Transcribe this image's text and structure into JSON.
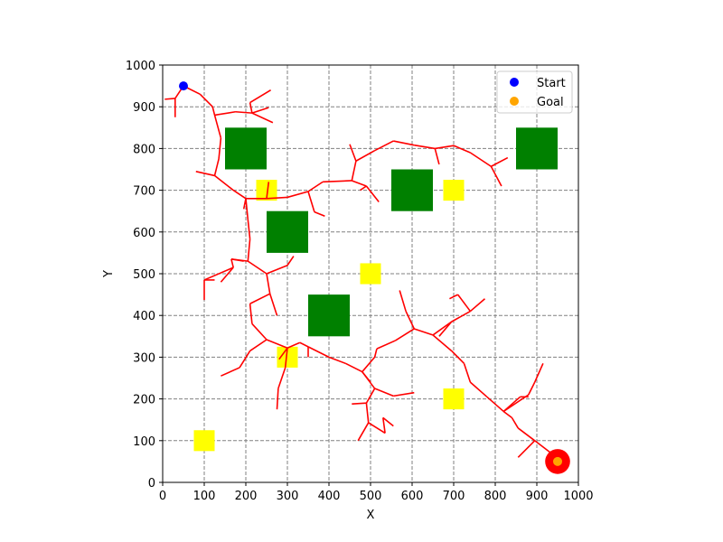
{
  "chart_data": {
    "type": "scatter",
    "title": "",
    "xlabel": "X",
    "ylabel": "Y",
    "xlim": [
      0,
      1000
    ],
    "ylim": [
      0,
      1000
    ],
    "x_ticks": [
      0,
      100,
      200,
      300,
      400,
      500,
      600,
      700,
      800,
      900,
      1000
    ],
    "y_ticks": [
      0,
      100,
      200,
      300,
      400,
      500,
      600,
      700,
      800,
      900,
      1000
    ],
    "grid": true,
    "legend_position": "top-right",
    "obstacles": [
      {
        "x": [
          150,
          250
        ],
        "y": [
          750,
          850
        ]
      },
      {
        "x": [
          250,
          350
        ],
        "y": [
          550,
          650
        ]
      },
      {
        "x": [
          350,
          450
        ],
        "y": [
          350,
          450
        ]
      },
      {
        "x": [
          550,
          650
        ],
        "y": [
          650,
          750
        ]
      },
      {
        "x": [
          850,
          950
        ],
        "y": [
          750,
          850
        ]
      }
    ],
    "hazards": [
      {
        "x": [
          225,
          275
        ],
        "y": [
          675,
          725
        ]
      },
      {
        "x": [
          475,
          525
        ],
        "y": [
          475,
          525
        ]
      },
      {
        "x": [
          675,
          725
        ],
        "y": [
          675,
          725
        ]
      },
      {
        "x": [
          275,
          325
        ],
        "y": [
          275,
          325
        ]
      },
      {
        "x": [
          675,
          725
        ],
        "y": [
          175,
          225
        ]
      },
      {
        "x": [
          75,
          125
        ],
        "y": [
          75,
          125
        ]
      }
    ],
    "tree_edges": [
      [
        [
          50,
          950
        ],
        [
          30,
          920
        ]
      ],
      [
        [
          30,
          920
        ],
        [
          5,
          918
        ]
      ],
      [
        [
          30,
          920
        ],
        [
          30,
          875
        ]
      ],
      [
        [
          50,
          950
        ],
        [
          90,
          930
        ]
      ],
      [
        [
          90,
          930
        ],
        [
          120,
          900
        ]
      ],
      [
        [
          120,
          900
        ],
        [
          125,
          880
        ]
      ],
      [
        [
          125,
          880
        ],
        [
          175,
          888
        ]
      ],
      [
        [
          175,
          888
        ],
        [
          215,
          885
        ]
      ],
      [
        [
          215,
          885
        ],
        [
          255,
          898
        ]
      ],
      [
        [
          215,
          885
        ],
        [
          210,
          910
        ]
      ],
      [
        [
          210,
          910
        ],
        [
          260,
          940
        ]
      ],
      [
        [
          215,
          885
        ],
        [
          265,
          862
        ]
      ],
      [
        [
          125,
          880
        ],
        [
          140,
          825
        ]
      ],
      [
        [
          140,
          825
        ],
        [
          135,
          775
        ]
      ],
      [
        [
          135,
          775
        ],
        [
          125,
          735
        ]
      ],
      [
        [
          125,
          735
        ],
        [
          80,
          745
        ]
      ],
      [
        [
          125,
          735
        ],
        [
          170,
          700
        ]
      ],
      [
        [
          170,
          700
        ],
        [
          200,
          680
        ]
      ],
      [
        [
          200,
          680
        ],
        [
          250,
          680
        ]
      ],
      [
        [
          250,
          680
        ],
        [
          300,
          683
        ]
      ],
      [
        [
          300,
          683
        ],
        [
          350,
          697
        ]
      ],
      [
        [
          350,
          697
        ],
        [
          365,
          648
        ]
      ],
      [
        [
          365,
          648
        ],
        [
          390,
          638
        ]
      ],
      [
        [
          350,
          697
        ],
        [
          385,
          720
        ]
      ],
      [
        [
          385,
          720
        ],
        [
          455,
          723
        ]
      ],
      [
        [
          455,
          723
        ],
        [
          490,
          710
        ]
      ],
      [
        [
          490,
          710
        ],
        [
          520,
          672
        ]
      ],
      [
        [
          490,
          710
        ],
        [
          475,
          700
        ]
      ],
      [
        [
          455,
          723
        ],
        [
          465,
          770
        ]
      ],
      [
        [
          465,
          770
        ],
        [
          450,
          810
        ]
      ],
      [
        [
          465,
          770
        ],
        [
          510,
          795
        ]
      ],
      [
        [
          510,
          795
        ],
        [
          555,
          818
        ]
      ],
      [
        [
          555,
          818
        ],
        [
          605,
          808
        ]
      ],
      [
        [
          605,
          808
        ],
        [
          655,
          800
        ]
      ],
      [
        [
          655,
          800
        ],
        [
          700,
          807
        ]
      ],
      [
        [
          700,
          807
        ],
        [
          740,
          790
        ]
      ],
      [
        [
          740,
          790
        ],
        [
          790,
          757
        ]
      ],
      [
        [
          790,
          757
        ],
        [
          815,
          710
        ]
      ],
      [
        [
          790,
          757
        ],
        [
          830,
          778
        ]
      ],
      [
        [
          655,
          800
        ],
        [
          665,
          762
        ]
      ],
      [
        [
          250,
          680
        ],
        [
          255,
          720
        ]
      ],
      [
        [
          200,
          680
        ],
        [
          195,
          655
        ]
      ],
      [
        [
          200,
          680
        ],
        [
          205,
          630
        ]
      ],
      [
        [
          205,
          630
        ],
        [
          210,
          583
        ]
      ],
      [
        [
          210,
          583
        ],
        [
          205,
          530
        ]
      ],
      [
        [
          205,
          530
        ],
        [
          165,
          535
        ]
      ],
      [
        [
          165,
          535
        ],
        [
          170,
          515
        ]
      ],
      [
        [
          170,
          515
        ],
        [
          140,
          480
        ]
      ],
      [
        [
          165,
          535
        ],
        [
          195,
          530
        ]
      ],
      [
        [
          205,
          530
        ],
        [
          250,
          500
        ]
      ],
      [
        [
          250,
          500
        ],
        [
          300,
          520
        ]
      ],
      [
        [
          300,
          520
        ],
        [
          315,
          542
        ]
      ],
      [
        [
          250,
          500
        ],
        [
          258,
          452
        ]
      ],
      [
        [
          258,
          452
        ],
        [
          275,
          400
        ]
      ],
      [
        [
          258,
          452
        ],
        [
          210,
          428
        ]
      ],
      [
        [
          210,
          428
        ],
        [
          215,
          380
        ]
      ],
      [
        [
          215,
          380
        ],
        [
          250,
          342
        ]
      ],
      [
        [
          250,
          342
        ],
        [
          300,
          322
        ]
      ],
      [
        [
          300,
          322
        ],
        [
          280,
          295
        ]
      ],
      [
        [
          300,
          322
        ],
        [
          295,
          275
        ]
      ],
      [
        [
          295,
          275
        ],
        [
          278,
          225
        ]
      ],
      [
        [
          278,
          225
        ],
        [
          275,
          175
        ]
      ],
      [
        [
          300,
          322
        ],
        [
          330,
          335
        ]
      ],
      [
        [
          330,
          335
        ],
        [
          350,
          325
        ]
      ],
      [
        [
          350,
          325
        ],
        [
          350,
          300
        ]
      ],
      [
        [
          350,
          325
        ],
        [
          400,
          300
        ]
      ],
      [
        [
          400,
          300
        ],
        [
          440,
          285
        ]
      ],
      [
        [
          440,
          285
        ],
        [
          480,
          265
        ]
      ],
      [
        [
          480,
          265
        ],
        [
          510,
          225
        ]
      ],
      [
        [
          510,
          225
        ],
        [
          555,
          207
        ]
      ],
      [
        [
          555,
          207
        ],
        [
          605,
          215
        ]
      ],
      [
        [
          480,
          265
        ],
        [
          500,
          240
        ]
      ],
      [
        [
          510,
          225
        ],
        [
          490,
          190
        ]
      ],
      [
        [
          490,
          190
        ],
        [
          455,
          188
        ]
      ],
      [
        [
          490,
          190
        ],
        [
          495,
          143
        ]
      ],
      [
        [
          495,
          143
        ],
        [
          470,
          100
        ]
      ],
      [
        [
          495,
          143
        ],
        [
          535,
          118
        ]
      ],
      [
        [
          535,
          118
        ],
        [
          530,
          155
        ]
      ],
      [
        [
          530,
          155
        ],
        [
          555,
          135
        ]
      ],
      [
        [
          250,
          342
        ],
        [
          210,
          315
        ]
      ],
      [
        [
          210,
          315
        ],
        [
          185,
          275
        ]
      ],
      [
        [
          185,
          275
        ],
        [
          140,
          255
        ]
      ],
      [
        [
          170,
          515
        ],
        [
          100,
          485
        ]
      ],
      [
        [
          100,
          485
        ],
        [
          100,
          437
        ]
      ],
      [
        [
          100,
          485
        ],
        [
          125,
          485
        ]
      ],
      [
        [
          480,
          265
        ],
        [
          510,
          300
        ]
      ],
      [
        [
          510,
          300
        ],
        [
          515,
          320
        ]
      ],
      [
        [
          515,
          320
        ],
        [
          560,
          340
        ]
      ],
      [
        [
          560,
          340
        ],
        [
          605,
          368
        ]
      ],
      [
        [
          605,
          368
        ],
        [
          585,
          410
        ]
      ],
      [
        [
          585,
          410
        ],
        [
          570,
          460
        ]
      ],
      [
        [
          605,
          368
        ],
        [
          650,
          353
        ]
      ],
      [
        [
          650,
          353
        ],
        [
          695,
          385
        ]
      ],
      [
        [
          695,
          385
        ],
        [
          740,
          410
        ]
      ],
      [
        [
          740,
          410
        ],
        [
          775,
          440
        ]
      ],
      [
        [
          740,
          410
        ],
        [
          710,
          450
        ]
      ],
      [
        [
          710,
          450
        ],
        [
          690,
          440
        ]
      ],
      [
        [
          695,
          385
        ],
        [
          665,
          350
        ]
      ],
      [
        [
          650,
          353
        ],
        [
          695,
          315
        ]
      ],
      [
        [
          695,
          315
        ],
        [
          725,
          285
        ]
      ],
      [
        [
          725,
          285
        ],
        [
          740,
          240
        ]
      ],
      [
        [
          740,
          240
        ],
        [
          780,
          205
        ]
      ],
      [
        [
          780,
          205
        ],
        [
          820,
          170
        ]
      ],
      [
        [
          820,
          170
        ],
        [
          840,
          155
        ]
      ],
      [
        [
          820,
          170
        ],
        [
          860,
          205
        ]
      ],
      [
        [
          860,
          205
        ],
        [
          880,
          205
        ]
      ],
      [
        [
          820,
          170
        ],
        [
          880,
          210
        ]
      ],
      [
        [
          880,
          210
        ],
        [
          895,
          240
        ]
      ],
      [
        [
          895,
          240
        ],
        [
          915,
          285
        ]
      ],
      [
        [
          840,
          155
        ],
        [
          855,
          130
        ]
      ],
      [
        [
          855,
          130
        ],
        [
          895,
          100
        ]
      ],
      [
        [
          895,
          100
        ],
        [
          945,
          62
        ]
      ],
      [
        [
          895,
          100
        ],
        [
          855,
          60
        ]
      ]
    ],
    "series": [
      {
        "name": "Start",
        "color": "#0000ff",
        "points": [
          [
            50,
            950
          ]
        ]
      },
      {
        "name": "Goal",
        "color": "#ffa500",
        "points": [
          [
            950,
            50
          ]
        ]
      }
    ],
    "goal_region": {
      "x": 950,
      "y": 50,
      "radius": 30,
      "color": "#ff0000"
    },
    "colors": {
      "tree": "#ff0000",
      "obstacle": "#008000",
      "hazard": "#ffff00",
      "grid": "#808080"
    }
  }
}
